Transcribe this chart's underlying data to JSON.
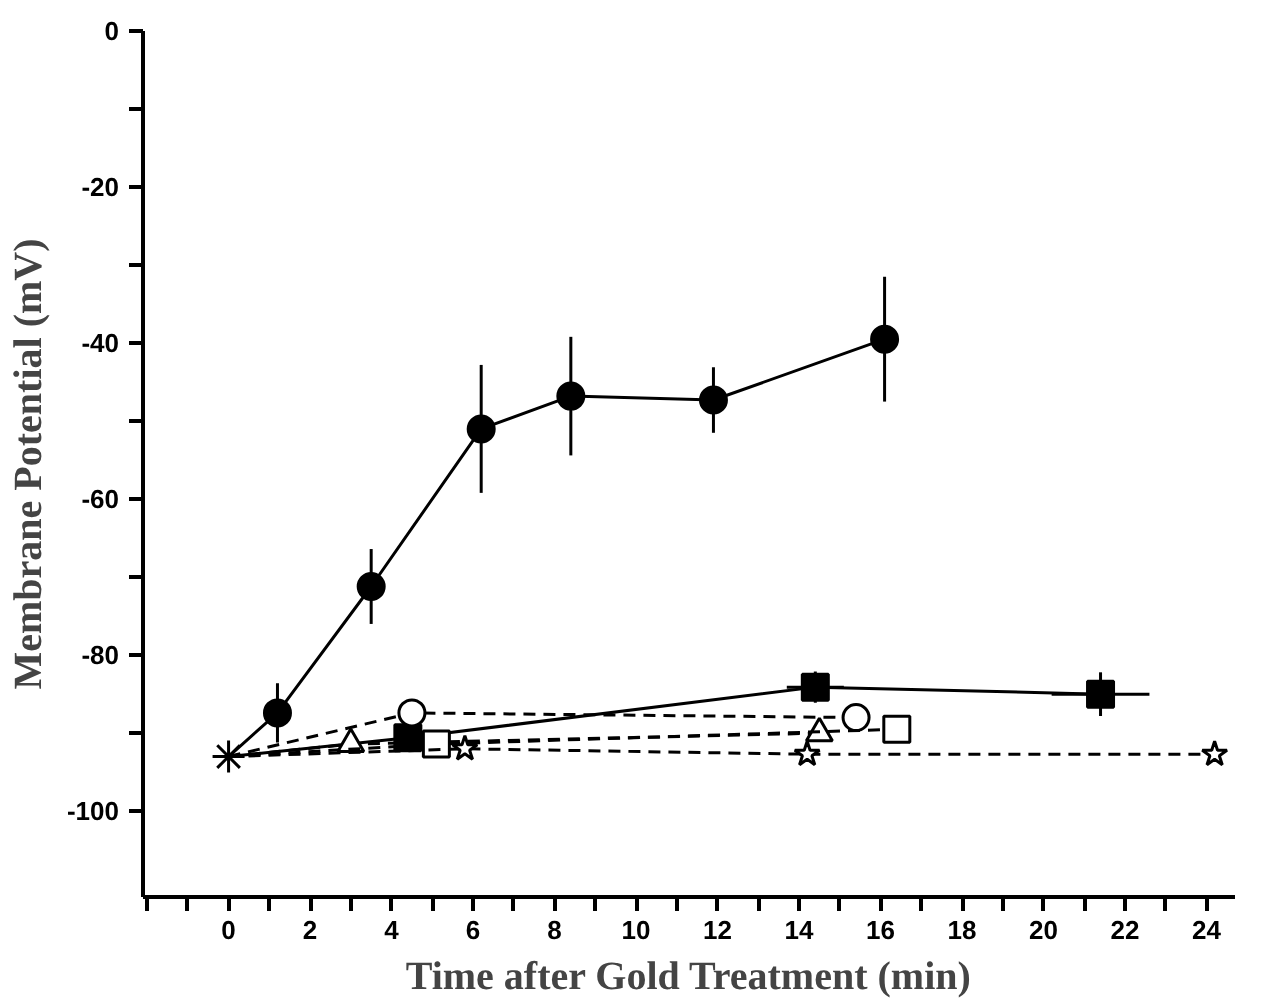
{
  "chart_data": {
    "type": "line",
    "xlabel": "Time after Gold Treatment (min)",
    "ylabel": "Membrane Potential (mV)",
    "xlim": [
      -2.1,
      24.7
    ],
    "ylim": [
      -111,
      0
    ],
    "xticks": [
      {
        "value": -2,
        "label": null
      },
      {
        "value": -1,
        "label": null
      },
      0,
      {
        "value": 1,
        "label": null
      },
      2,
      {
        "value": 3,
        "label": null
      },
      4,
      {
        "value": 5,
        "label": null
      },
      6,
      {
        "value": 7,
        "label": null
      },
      8,
      {
        "value": 9,
        "label": null
      },
      10,
      {
        "value": 11,
        "label": null
      },
      12,
      {
        "value": 13,
        "label": null
      },
      14,
      {
        "value": 15,
        "label": null
      },
      16,
      {
        "value": 17,
        "label": null
      },
      18,
      {
        "value": 19,
        "label": null
      },
      20,
      {
        "value": 21,
        "label": null
      },
      22,
      {
        "value": 23,
        "label": null
      },
      24
    ],
    "yticks": [
      0,
      {
        "value": -10,
        "label": null
      },
      -20,
      {
        "value": -30,
        "label": null
      },
      -40,
      {
        "value": -50,
        "label": null
      },
      -60,
      {
        "value": -70,
        "label": null
      },
      -80,
      {
        "value": -90,
        "label": null
      },
      -100
    ],
    "grid": false,
    "series": [
      {
        "type": "scatter",
        "color": "#000000",
        "marker": "cross",
        "x": [
          0
        ],
        "values": [
          -93
        ]
      },
      {
        "color": "#000000",
        "line_style": "solid",
        "marker": "circle",
        "x": [
          0,
          1.2,
          3.5,
          6.2,
          8.4,
          11.9,
          16.1
        ],
        "values": [
          -93,
          -87.4,
          -71.2,
          -51,
          -46.8,
          -47.3,
          -39.5
        ],
        "errors": [
          null,
          3.8,
          4.8,
          8.2,
          7.6,
          4.2,
          8
        ]
      },
      {
        "color": "#000000",
        "line_style": "solid",
        "marker": "square",
        "x": [
          0,
          4.4,
          14.4,
          21.4
        ],
        "values": [
          -93,
          -90.6,
          -84.1,
          -85
        ],
        "errors": [
          null,
          null,
          2,
          2.8
        ],
        "xerrors": [
          null,
          null,
          0.7,
          1.2
        ]
      },
      {
        "color": "#000000",
        "line_style": "dashed",
        "marker": "circle",
        "x": [
          0,
          4.5,
          15.4
        ],
        "values": [
          -93,
          -87.4,
          -88
        ]
      },
      {
        "color": "#000000",
        "line_style": "dashed",
        "marker": "triangle",
        "x": [
          0,
          3.0,
          14.5
        ],
        "values": [
          -93,
          -91.4,
          -90
        ]
      },
      {
        "color": "#000000",
        "line_style": "dashed",
        "marker": "square",
        "x": [
          0,
          5.1,
          16.4
        ],
        "values": [
          -93,
          -91.4,
          -89.5
        ]
      },
      {
        "color": "#000000",
        "line_style": "dashed",
        "marker": "star",
        "x": [
          0,
          5.8,
          14.2,
          24.2
        ],
        "values": [
          -93,
          -92,
          -92.7,
          -92.7
        ]
      }
    ]
  }
}
